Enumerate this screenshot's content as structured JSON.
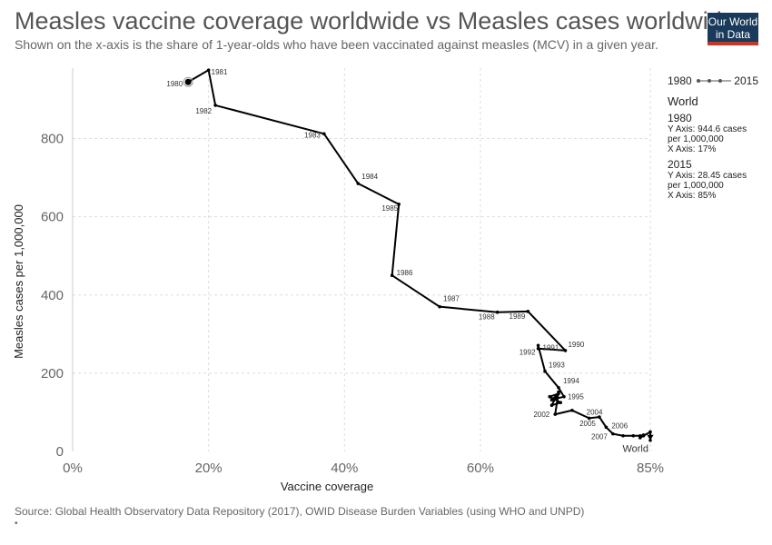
{
  "header": {
    "title": "Measles vaccine coverage worldwide vs Measles cases worldwide",
    "subtitle": "Shown on the x-axis is the share of 1-year-olds who have been vaccinated against measles (MCV) in a given year.",
    "logo_line1": "Our World",
    "logo_line2": "in Data"
  },
  "legend": {
    "start": "1980",
    "end": "2015",
    "entity": "World",
    "y1_year": "1980",
    "y1_line1": "Y Axis: 944.6 cases",
    "y1_line2": "per 1,000,000",
    "y1_line3": "X Axis: 17%",
    "y2_year": "2015",
    "y2_line1": "Y Axis: 28.45 cases",
    "y2_line2": "per 1,000,000",
    "y2_line3": "X Axis: 85%"
  },
  "footer": {
    "source": "Source: Global Health Observatory Data Repository (2017), OWID Disease Burden Variables (using WHO and UNPD)",
    "bullet": "•"
  },
  "colors": {
    "line": "#000000",
    "grid": "#dddddd"
  },
  "chart_data": {
    "type": "scatter",
    "connected": true,
    "xlabel": "Vaccine coverage",
    "ylabel": "Measles cases per 1,000,000",
    "xlim": [
      0,
      85
    ],
    "ylim": [
      0,
      980
    ],
    "x_ticks": [
      "0%",
      "20%",
      "40%",
      "60%",
      "85%"
    ],
    "x_tick_values": [
      0,
      20,
      40,
      60,
      85
    ],
    "y_ticks": [
      0,
      200,
      400,
      600,
      800
    ],
    "end_label": "World",
    "series": [
      {
        "name": "World",
        "points": [
          {
            "year": "1980",
            "x": 17,
            "y": 944.6
          },
          {
            "year": "1981",
            "x": 20,
            "y": 975
          },
          {
            "year": "1982",
            "x": 21,
            "y": 885
          },
          {
            "year": "1983",
            "x": 37,
            "y": 812
          },
          {
            "year": "1984",
            "x": 42,
            "y": 685
          },
          {
            "year": "1985",
            "x": 48,
            "y": 632
          },
          {
            "year": "1986",
            "x": 47,
            "y": 450
          },
          {
            "year": "1987",
            "x": 54,
            "y": 370
          },
          {
            "year": "1988",
            "x": 62.5,
            "y": 356
          },
          {
            "year": "1989",
            "x": 67,
            "y": 358
          },
          {
            "year": "1990",
            "x": 72.5,
            "y": 258
          },
          {
            "year": "1991",
            "x": 68.5,
            "y": 263
          },
          {
            "year": "1992",
            "x": 68.5,
            "y": 271
          },
          {
            "year": "1993",
            "x": 69.5,
            "y": 205
          },
          {
            "year": "1994",
            "x": 71.5,
            "y": 163
          },
          {
            "year": "1995",
            "x": 72.3,
            "y": 140
          },
          {
            "year": "1996",
            "x": 70.5,
            "y": 132
          },
          {
            "year": "1997",
            "x": 71.5,
            "y": 148
          },
          {
            "year": "1998",
            "x": 70.2,
            "y": 140
          },
          {
            "year": "1999",
            "x": 71.8,
            "y": 125
          },
          {
            "year": "2000",
            "x": 70.5,
            "y": 118
          },
          {
            "year": "2001",
            "x": 71.5,
            "y": 152
          },
          {
            "year": "2002",
            "x": 71,
            "y": 95
          },
          {
            "year": "2003",
            "x": 73.5,
            "y": 105
          },
          {
            "year": "2004",
            "x": 76,
            "y": 85
          },
          {
            "year": "2005",
            "x": 77.5,
            "y": 88
          },
          {
            "year": "2006",
            "x": 78.5,
            "y": 62
          },
          {
            "year": "2007",
            "x": 79.5,
            "y": 45
          },
          {
            "year": "2008",
            "x": 81,
            "y": 40
          },
          {
            "year": "2009",
            "x": 82.5,
            "y": 40
          },
          {
            "year": "2010",
            "x": 83.5,
            "y": 40
          },
          {
            "year": "2011",
            "x": 84,
            "y": 42
          },
          {
            "year": "2012",
            "x": 83.5,
            "y": 35
          },
          {
            "year": "2013",
            "x": 84,
            "y": 40
          },
          {
            "year": "2014",
            "x": 85,
            "y": 50
          },
          {
            "year": "2015",
            "x": 85,
            "y": 28.45
          }
        ],
        "labeled_years": [
          "1980",
          "1981",
          "1982",
          "1983",
          "1984",
          "1985",
          "1986",
          "1987",
          "1988",
          "1989",
          "1990",
          "1991",
          "1992",
          "1993",
          "1994",
          "1995",
          "2002",
          "2004",
          "2005",
          "2006",
          "2007"
        ]
      }
    ]
  }
}
